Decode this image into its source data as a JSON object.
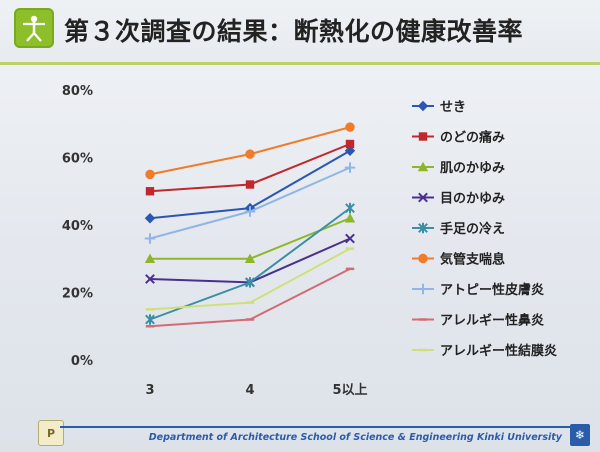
{
  "slide": {
    "title": "第３次調査の結果：断熱化の健康改善率",
    "footer": "Department of Architecture  School of Science & Engineering  Kinki University",
    "page_icon_label": "P",
    "logo_icon": "vitruvian-man-icon",
    "corner_icon": "snowflake-icon"
  },
  "chart_data": {
    "type": "line",
    "categories": [
      "3",
      "4",
      "5以上"
    ],
    "y_tick_labels": [
      "0%",
      "20%",
      "40%",
      "60%",
      "80%"
    ],
    "ylim": [
      0,
      80
    ],
    "grid": false,
    "legend_position": "right",
    "series": [
      {
        "name": "せき",
        "color": "#2a57b3",
        "marker": "diamond",
        "values": [
          42,
          45,
          62
        ]
      },
      {
        "name": "のどの痛み",
        "color": "#c0282d",
        "marker": "square",
        "values": [
          50,
          52,
          64
        ]
      },
      {
        "name": "肌のかゆみ",
        "color": "#8db728",
        "marker": "triangle",
        "values": [
          30,
          30,
          42
        ]
      },
      {
        "name": "目のかゆみ",
        "color": "#4b2f8f",
        "marker": "x",
        "values": [
          24,
          23,
          36
        ]
      },
      {
        "name": "手足の冷え",
        "color": "#3b8fa5",
        "marker": "star",
        "values": [
          12,
          23,
          45
        ]
      },
      {
        "name": "気管支喘息",
        "color": "#f07c2a",
        "marker": "circle",
        "values": [
          55,
          61,
          69
        ]
      },
      {
        "name": "アトピー性皮膚炎",
        "color": "#8fb6e6",
        "marker": "plus",
        "values": [
          36,
          44,
          57
        ]
      },
      {
        "name": "アレルギー性鼻炎",
        "color": "#d46a73",
        "marker": "dash",
        "values": [
          10,
          12,
          27
        ]
      },
      {
        "name": "アレルギー性結膜炎",
        "color": "#cfe07a",
        "marker": "dash",
        "values": [
          15,
          17,
          33
        ]
      }
    ]
  }
}
